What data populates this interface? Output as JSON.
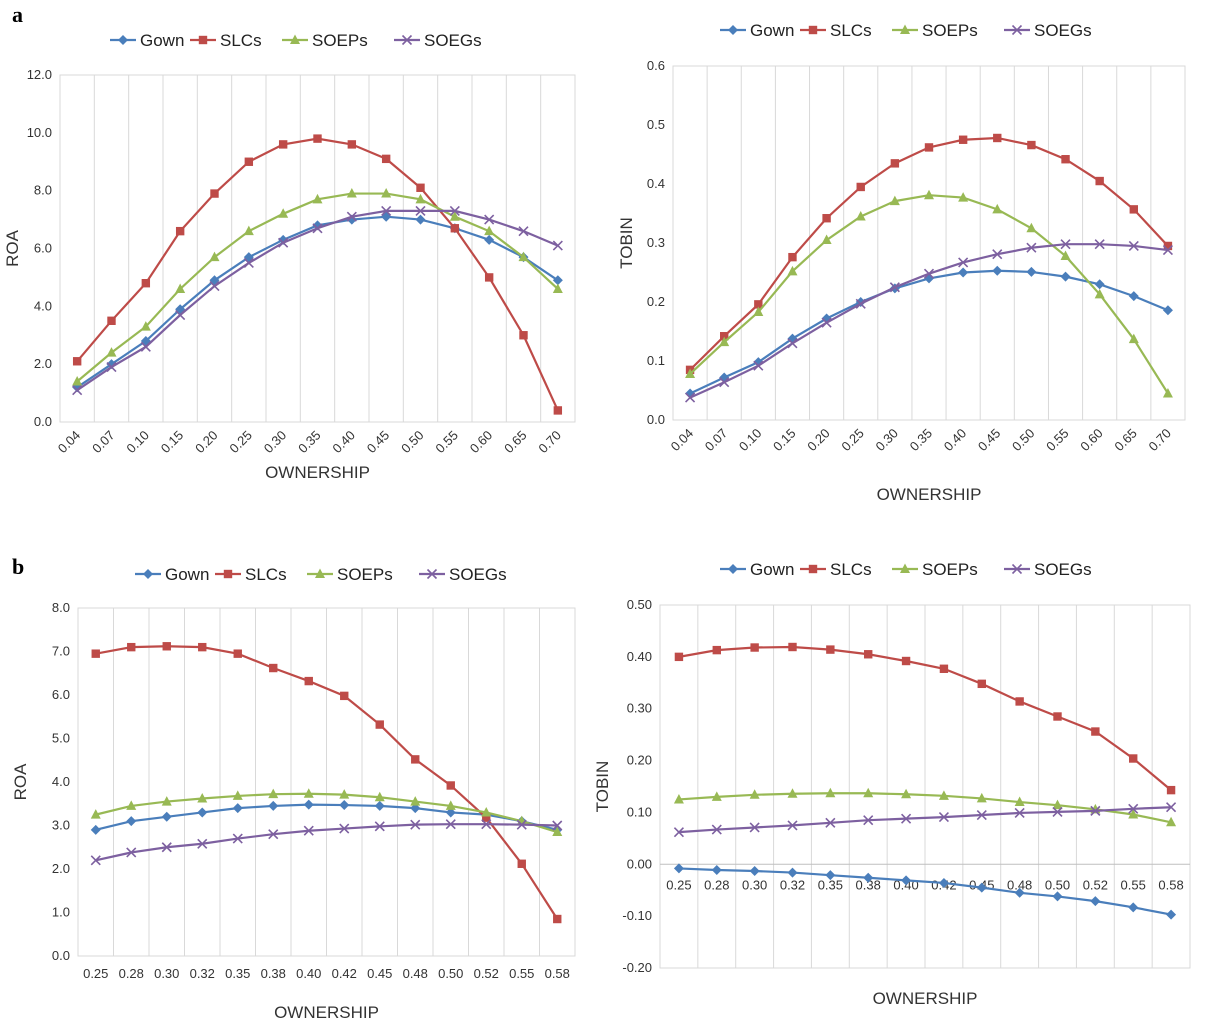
{
  "panel_labels": [
    "a",
    "b"
  ],
  "series_styles": {
    "Gown": {
      "color": "#4a7ebb",
      "marker": "diamond"
    },
    "SLCs": {
      "color": "#be4b48",
      "marker": "square"
    },
    "SOEPs": {
      "color": "#98b954",
      "marker": "triangle"
    },
    "SOEGs": {
      "color": "#7d60a0",
      "marker": "x"
    }
  },
  "chart_data": [
    {
      "type": "line",
      "panel": "a",
      "categories": [
        "0.04",
        "0.07",
        "0.10",
        "0.15",
        "0.20",
        "0.25",
        "0.30",
        "0.35",
        "0.40",
        "0.45",
        "0.50",
        "0.55",
        "0.60",
        "0.65",
        "0.70"
      ],
      "xlabel": "OWNERSHIP",
      "ylabel": "ROA",
      "ylim": [
        0,
        12
      ],
      "ystep": 2,
      "ydecimals": 1,
      "tick_rotation": -45,
      "grid": "vertical",
      "legend": "top",
      "series": [
        {
          "name": "Gown",
          "values": [
            1.2,
            2.0,
            2.8,
            3.9,
            4.9,
            5.7,
            6.3,
            6.8,
            7.0,
            7.1,
            7.0,
            6.7,
            6.3,
            5.7,
            4.9
          ]
        },
        {
          "name": "SLCs",
          "values": [
            2.1,
            3.5,
            4.8,
            6.6,
            7.9,
            9.0,
            9.6,
            9.8,
            9.6,
            9.1,
            8.1,
            6.7,
            5.0,
            3.0,
            0.4
          ]
        },
        {
          "name": "SOEPs",
          "values": [
            1.4,
            2.4,
            3.3,
            4.6,
            5.7,
            6.6,
            7.2,
            7.7,
            7.9,
            7.9,
            7.7,
            7.1,
            6.6,
            5.7,
            4.6
          ]
        },
        {
          "name": "SOEGs",
          "values": [
            1.1,
            1.9,
            2.6,
            3.7,
            4.7,
            5.5,
            6.2,
            6.7,
            7.1,
            7.3,
            7.3,
            7.3,
            7.0,
            6.6,
            6.1
          ]
        }
      ]
    },
    {
      "type": "line",
      "panel": "a",
      "categories": [
        "0.04",
        "0.07",
        "0.10",
        "0.15",
        "0.20",
        "0.25",
        "0.30",
        "0.35",
        "0.40",
        "0.45",
        "0.50",
        "0.55",
        "0.60",
        "0.65",
        "0.70"
      ],
      "xlabel": "OWNERSHIP",
      "ylabel": "TOBIN",
      "ylim": [
        0,
        0.6
      ],
      "ystep": 0.1,
      "ydecimals": 1,
      "tick_rotation": -45,
      "grid": "vertical",
      "legend": "top",
      "series": [
        {
          "name": "Gown",
          "values": [
            0.045,
            0.072,
            0.098,
            0.138,
            0.172,
            0.2,
            0.223,
            0.24,
            0.25,
            0.253,
            0.251,
            0.243,
            0.23,
            0.21,
            0.186
          ]
        },
        {
          "name": "SLCs",
          "values": [
            0.085,
            0.142,
            0.196,
            0.276,
            0.342,
            0.395,
            0.435,
            0.462,
            0.475,
            0.478,
            0.466,
            0.442,
            0.405,
            0.357,
            0.295
          ]
        },
        {
          "name": "SOEPs",
          "values": [
            0.078,
            0.132,
            0.183,
            0.252,
            0.305,
            0.345,
            0.371,
            0.381,
            0.377,
            0.357,
            0.325,
            0.278,
            0.213,
            0.137,
            0.045
          ]
        },
        {
          "name": "SOEGs",
          "values": [
            0.038,
            0.064,
            0.092,
            0.13,
            0.165,
            0.197,
            0.225,
            0.248,
            0.267,
            0.281,
            0.292,
            0.298,
            0.298,
            0.295,
            0.288
          ]
        }
      ]
    },
    {
      "type": "line",
      "panel": "b",
      "categories": [
        "0.25",
        "0.28",
        "0.30",
        "0.32",
        "0.35",
        "0.38",
        "0.40",
        "0.42",
        "0.45",
        "0.48",
        "0.50",
        "0.52",
        "0.55",
        "0.58"
      ],
      "xlabel": "OWNERSHIP",
      "ylabel": "ROA",
      "ylim": [
        0,
        8
      ],
      "ystep": 1,
      "ydecimals": 1,
      "tick_rotation": 0,
      "grid": "vertical",
      "legend": "top",
      "series": [
        {
          "name": "Gown",
          "values": [
            2.9,
            3.1,
            3.2,
            3.3,
            3.4,
            3.45,
            3.48,
            3.47,
            3.45,
            3.4,
            3.3,
            3.25,
            3.1,
            2.9
          ]
        },
        {
          "name": "SLCs",
          "values": [
            6.95,
            7.1,
            7.12,
            7.1,
            6.95,
            6.62,
            6.32,
            5.98,
            5.32,
            4.52,
            3.92,
            3.18,
            2.12,
            0.85
          ]
        },
        {
          "name": "SOEPs",
          "values": [
            3.25,
            3.45,
            3.55,
            3.62,
            3.68,
            3.72,
            3.73,
            3.71,
            3.65,
            3.55,
            3.45,
            3.3,
            3.1,
            2.85
          ]
        },
        {
          "name": "SOEGs",
          "values": [
            2.2,
            2.38,
            2.5,
            2.58,
            2.7,
            2.8,
            2.88,
            2.93,
            2.98,
            3.02,
            3.03,
            3.03,
            3.02,
            3.0
          ]
        }
      ]
    },
    {
      "type": "line",
      "panel": "b",
      "categories": [
        "0.25",
        "0.28",
        "0.30",
        "0.32",
        "0.35",
        "0.38",
        "0.40",
        "0.42",
        "0.45",
        "0.48",
        "0.50",
        "0.52",
        "0.55",
        "0.58"
      ],
      "xlabel": "OWNERSHIP",
      "ylabel": "TOBIN",
      "ylim": [
        -0.2,
        0.5
      ],
      "ystep": 0.1,
      "ydecimals": 2,
      "tick_rotation": 0,
      "tick_labels_at_zero": true,
      "grid": "vertical",
      "legend": "top",
      "series": [
        {
          "name": "Gown",
          "values": [
            -0.008,
            -0.011,
            -0.013,
            -0.016,
            -0.021,
            -0.026,
            -0.031,
            -0.036,
            -0.045,
            -0.055,
            -0.062,
            -0.071,
            -0.083,
            -0.097
          ]
        },
        {
          "name": "SLCs",
          "values": [
            0.4,
            0.413,
            0.418,
            0.419,
            0.414,
            0.405,
            0.392,
            0.377,
            0.348,
            0.314,
            0.285,
            0.256,
            0.204,
            0.143
          ]
        },
        {
          "name": "SOEPs",
          "values": [
            0.125,
            0.13,
            0.134,
            0.136,
            0.137,
            0.137,
            0.135,
            0.132,
            0.127,
            0.12,
            0.114,
            0.106,
            0.096,
            0.081
          ]
        },
        {
          "name": "SOEGs",
          "values": [
            0.062,
            0.067,
            0.071,
            0.075,
            0.08,
            0.085,
            0.088,
            0.091,
            0.095,
            0.099,
            0.101,
            0.103,
            0.107,
            0.11
          ]
        }
      ]
    }
  ]
}
